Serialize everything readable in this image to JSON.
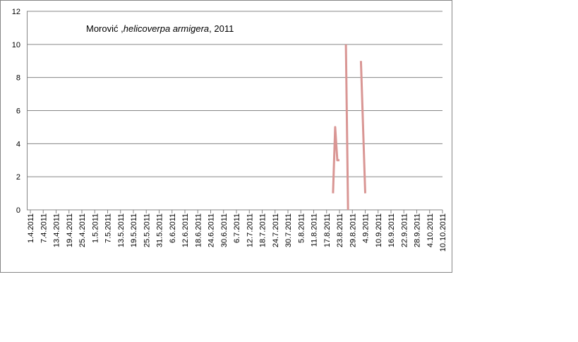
{
  "chart_data": {
    "type": "line",
    "title": [
      "Morović ,",
      "helicoverpa armigera",
      ", 2011"
    ],
    "x": [
      "20.8.2011",
      "21.8.2011",
      "22.8.2011",
      "23.8.2011",
      "24.8.2011",
      "26.8.2011",
      "27.8.2011",
      "28.8.2011",
      "2.9.2011",
      "4.9.2011"
    ],
    "series": [
      {
        "color": "#d99694",
        "values": [
          1,
          5,
          3,
          3,
          null,
          10,
          0,
          null,
          9,
          1
        ]
      }
    ],
    "xlim": [
      "1.4.2011",
      "10.10.2011"
    ],
    "xticks": [
      "1.4.2011",
      "7.4.2011",
      "13.4.2011",
      "19.4.2011",
      "25.4.2011",
      "1.5.2011",
      "7.5.2011",
      "13.5.2011",
      "19.5.2011",
      "25.5.2011",
      "31.5.2011",
      "6.6.2011",
      "12.6.2011",
      "18.6.2011",
      "24.6.2011",
      "30.6.2011",
      "6.7.2011",
      "12.7.2011",
      "18.7.2011",
      "24.7.2011",
      "30.7.2011",
      "5.8.2011",
      "11.8.2011",
      "17.8.2011",
      "23.8.2011",
      "29.8.2011",
      "4.9.2011",
      "10.9.2011",
      "16.9.2011",
      "22.9.2011",
      "28.9.2011",
      "4.10.2011",
      "10.10.2011"
    ],
    "ylim": [
      0,
      12
    ],
    "yticks": [
      0,
      2,
      4,
      6,
      8,
      10,
      12
    ],
    "grid": true
  }
}
